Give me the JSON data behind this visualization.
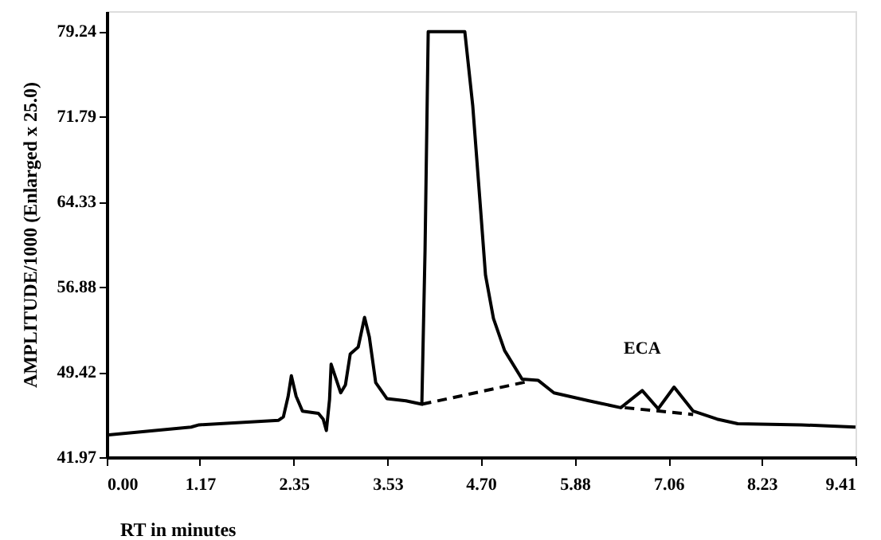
{
  "chart_data": {
    "type": "line",
    "xlabel": "RT in minutes",
    "ylabel": "AMPLITUDE/1000 (Enlarged x 25.0)",
    "series": [
      {
        "color": "#000000",
        "line_style": "solid",
        "x": [
          0,
          1.06,
          1.16,
          2.16,
          2.22,
          2.28,
          2.32,
          2.38,
          2.46,
          2.66,
          2.72,
          2.76,
          2.8,
          2.82,
          2.94,
          3.0,
          3.06,
          3.16,
          3.24,
          3.3,
          3.38,
          3.52,
          3.76,
          3.96,
          4.0,
          4.04,
          4.5,
          4.6,
          4.7,
          4.76,
          4.86,
          5.0,
          5.22,
          5.42,
          5.62,
          6.06,
          6.46,
          6.73,
          6.93,
          7.13,
          7.37,
          7.67,
          7.93,
          8.73,
          9.41
        ],
        "values": [
          43.9,
          44.6,
          44.8,
          45.2,
          45.5,
          47.3,
          49.1,
          47.3,
          46.0,
          45.8,
          45.3,
          44.3,
          47.0,
          50.1,
          47.6,
          48.3,
          51.0,
          51.6,
          54.2,
          52.5,
          48.5,
          47.1,
          46.9,
          46.6,
          60.0,
          79.2,
          79.2,
          72.7,
          63.5,
          57.9,
          54.1,
          51.3,
          48.8,
          48.7,
          47.6,
          46.9,
          46.3,
          47.8,
          46.2,
          48.1,
          46.0,
          45.3,
          44.9,
          44.8,
          44.6
        ]
      },
      {
        "color": "#000000",
        "line_style": "dashed",
        "x": [
          3.96,
          5.3
        ],
        "values": [
          46.6,
          48.6
        ]
      },
      {
        "color": "#000000",
        "line_style": "dashed",
        "x": [
          6.51,
          7.37
        ],
        "values": [
          46.3,
          45.7
        ]
      }
    ],
    "xlim": [
      0,
      9.41
    ],
    "ylim": [
      41.97,
      81
    ],
    "xticks": [
      {
        "value": 0,
        "label": "0.00"
      },
      1.17,
      2.35,
      3.53,
      {
        "value": 4.7,
        "label": "4.70"
      },
      5.88,
      7.06,
      8.23,
      9.41
    ],
    "yticks": [
      41.97,
      49.42,
      56.88,
      64.33,
      71.79,
      79.24
    ],
    "annotations": [
      {
        "text": "ECA",
        "x": 6.73,
        "y": 47.8
      }
    ],
    "marker": "none"
  }
}
